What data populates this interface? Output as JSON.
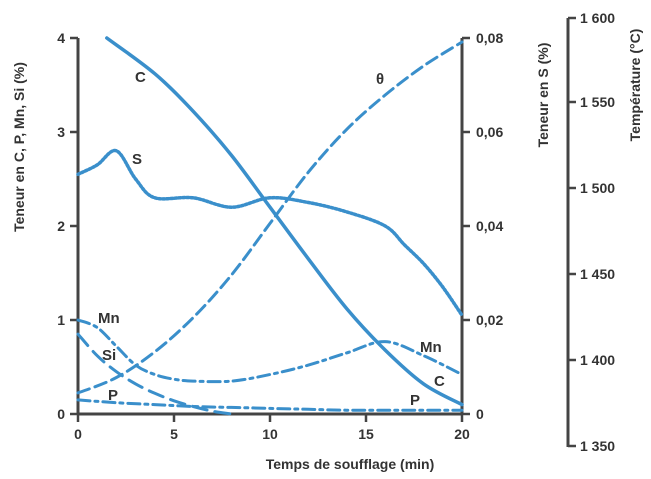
{
  "chart_data": {
    "type": "line",
    "title": "",
    "xlabel": "Temps de soufflage (min)",
    "xlim": [
      0,
      20
    ],
    "x_ticks": [
      "0",
      "5",
      "10",
      "15",
      "20"
    ],
    "y_left": {
      "label": "Teneur en C, P, Mn, Si (%)",
      "lim": [
        0,
        4
      ],
      "ticks": [
        "0",
        "1",
        "2",
        "3",
        "4"
      ]
    },
    "y_right_s": {
      "label": "Teneur en S (%)",
      "lim": [
        0,
        0.08
      ],
      "ticks": [
        "0",
        "0,02",
        "0,04",
        "0,06",
        "0,08"
      ]
    },
    "y_right_temp": {
      "label": "Température (°C)",
      "lim": [
        1350,
        1600
      ],
      "ticks": [
        "1 350",
        "1 400",
        "1 450",
        "1 500",
        "1 550",
        "1 600"
      ]
    },
    "line_color": "#3a8fcb",
    "grid": false,
    "series": [
      {
        "name": "C",
        "axis": "left",
        "style": "solid",
        "x": [
          1.5,
          4,
          6,
          8,
          10,
          12,
          14,
          16,
          18,
          20
        ],
        "y": [
          4.0,
          3.62,
          3.22,
          2.75,
          2.2,
          1.65,
          1.12,
          0.68,
          0.32,
          0.1
        ]
      },
      {
        "name": "Mn",
        "axis": "left",
        "style": "dashdot",
        "x": [
          0,
          1,
          2,
          3,
          4,
          5,
          6,
          8,
          10,
          12,
          14,
          16,
          18,
          20
        ],
        "y": [
          1.0,
          0.92,
          0.72,
          0.52,
          0.42,
          0.37,
          0.35,
          0.35,
          0.42,
          0.52,
          0.65,
          0.77,
          0.62,
          0.42
        ]
      },
      {
        "name": "Si",
        "axis": "left",
        "style": "dashed",
        "x": [
          0,
          1,
          2,
          3,
          4,
          5,
          6,
          7,
          8
        ],
        "y": [
          0.85,
          0.62,
          0.45,
          0.32,
          0.22,
          0.14,
          0.08,
          0.03,
          0.0
        ]
      },
      {
        "name": "P",
        "axis": "left",
        "style": "dashdot",
        "x": [
          0,
          2,
          4,
          6,
          8,
          10,
          12,
          14,
          16,
          18,
          20
        ],
        "y": [
          0.15,
          0.12,
          0.1,
          0.08,
          0.07,
          0.06,
          0.05,
          0.04,
          0.04,
          0.04,
          0.04
        ]
      },
      {
        "name": "S",
        "axis": "right_s",
        "style": "dotted",
        "x": [
          0,
          1,
          2,
          3,
          4,
          6,
          8,
          10,
          12,
          14,
          16,
          17,
          18,
          19,
          20
        ],
        "y": [
          0.051,
          0.053,
          0.056,
          0.05,
          0.046,
          0.046,
          0.044,
          0.046,
          0.045,
          0.043,
          0.04,
          0.036,
          0.032,
          0.027,
          0.021
        ]
      },
      {
        "name": "θ",
        "axis": "right_temp",
        "style": "dashed",
        "x": [
          0,
          2,
          4,
          6,
          8,
          10,
          12,
          14,
          16,
          18,
          20
        ],
        "y": [
          1381,
          1390,
          1405,
          1425,
          1450,
          1480,
          1510,
          1535,
          1555,
          1572,
          1586
        ]
      }
    ]
  }
}
